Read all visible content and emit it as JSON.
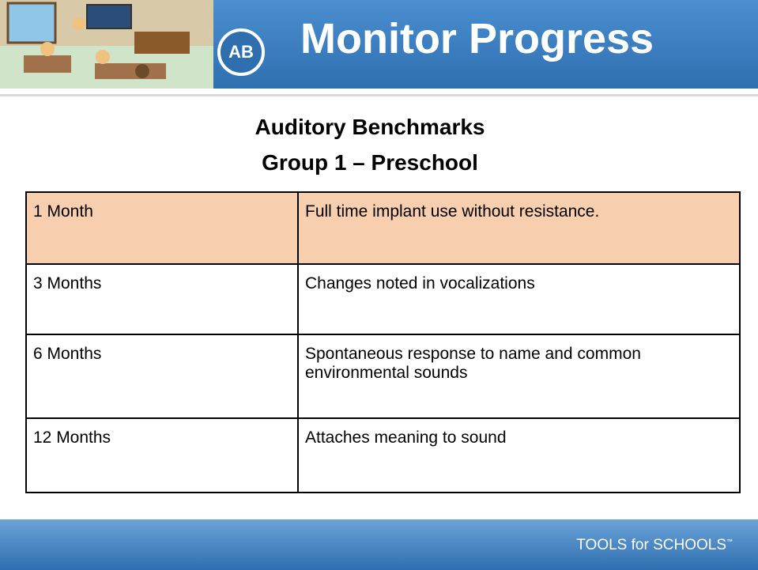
{
  "header": {
    "logo": "AB",
    "title": "Monitor Progress"
  },
  "subtitle": [
    "Auditory Benchmarks",
    "Group 1 – Preschool"
  ],
  "table": {
    "rows": [
      [
        "1 Month",
        "Full time implant use without resistance."
      ],
      [
        "3 Months",
        "Changes noted in vocalizations"
      ],
      [
        "6 Months",
        "Spontaneous response to name and common environmental sounds"
      ],
      [
        "12 Months",
        "Attaches meaning to sound"
      ]
    ]
  },
  "footer": {
    "brand": "TOOLS for SCHOOLS",
    "mark": "™"
  }
}
